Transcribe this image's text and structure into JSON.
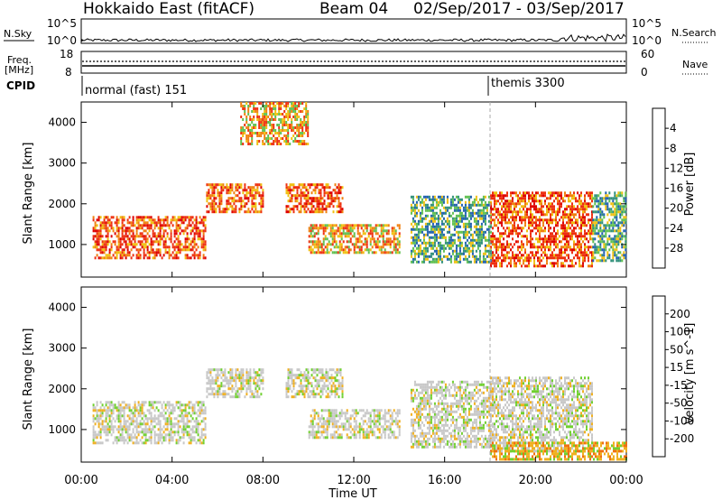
{
  "header": {
    "station": "Hokkaido East (fitACF)",
    "beam": "Beam 04",
    "dates": "02/Sep/2017 - 03/Sep/2017"
  },
  "noise_panel": {
    "left_label": "N.Sky",
    "right_label": "N.Search",
    "tick_top": "10^5",
    "tick_bottom": "10^0"
  },
  "freq_panel": {
    "left_label_1": "Freq.",
    "left_label_2": "[MHz]",
    "right_label": "Nave",
    "left_ticks": [
      "18",
      "8"
    ],
    "right_ticks": [
      "60",
      "0"
    ]
  },
  "cpid": {
    "label": "CPID",
    "modes": [
      {
        "name": "normal (fast) 151",
        "start_hour": 0
      },
      {
        "name": "themis 3300",
        "start_hour": 18
      }
    ]
  },
  "x_axis": {
    "label": "Time UT",
    "ticks": [
      "00:00",
      "04:00",
      "08:00",
      "12:00",
      "16:00",
      "20:00",
      "00:00"
    ]
  },
  "chart_data": [
    {
      "type": "heatmap",
      "name": "power",
      "ylabel": "Slant Range [km]",
      "yticks": [
        1000,
        2000,
        3000,
        4000
      ],
      "ylim": [
        200,
        4500
      ],
      "xlim_hours": [
        0,
        24
      ],
      "colorbar": {
        "label": "Power [dB]",
        "ticks": [
          "4",
          "8",
          "12",
          "16",
          "20",
          "24",
          "28"
        ],
        "colors": [
          "#1020ff",
          "#2060b0",
          "#30907a",
          "#60c050",
          "#f0c010",
          "#f08010",
          "#ee3010",
          "#dd0000"
        ]
      },
      "regions": [
        {
          "t0": 0.5,
          "t1": 5.5,
          "r0": 700,
          "r1": 1700,
          "level": "high"
        },
        {
          "t0": 5.5,
          "t1": 8,
          "r0": 1800,
          "r1": 2500,
          "level": "high"
        },
        {
          "t0": 7,
          "t1": 10,
          "r0": 3500,
          "r1": 4500,
          "level": "mid"
        },
        {
          "t0": 9,
          "t1": 11.5,
          "r0": 1800,
          "r1": 2500,
          "level": "high"
        },
        {
          "t0": 10,
          "t1": 14,
          "r0": 800,
          "r1": 1500,
          "level": "mid"
        },
        {
          "t0": 14.5,
          "t1": 18,
          "r0": 600,
          "r1": 2200,
          "level": "low"
        },
        {
          "t0": 18,
          "t1": 22.5,
          "r0": 500,
          "r1": 2300,
          "level": "high"
        },
        {
          "t0": 22.5,
          "t1": 24,
          "r0": 600,
          "r1": 2300,
          "level": "low"
        }
      ]
    },
    {
      "type": "heatmap",
      "name": "velocity",
      "ylabel": "Slant Range [km]",
      "yticks": [
        1000,
        2000,
        3000,
        4000
      ],
      "ylim": [
        200,
        4500
      ],
      "xlim_hours": [
        0,
        24
      ],
      "colorbar": {
        "label": "Velocity [m s^-1]",
        "ticks": [
          "200",
          "100",
          "50",
          "15",
          "-15",
          "-50",
          "-100",
          "-200"
        ],
        "colors": [
          "#1020c0",
          "#2070a0",
          "#30a060",
          "#70d030",
          "#c8c8c8",
          "#f0b020",
          "#f07010",
          "#e02010",
          "#dd0000"
        ]
      },
      "regions": [
        {
          "t0": 0.5,
          "t1": 5.5,
          "r0": 700,
          "r1": 1700,
          "level": "ground"
        },
        {
          "t0": 5.5,
          "t1": 8,
          "r0": 1800,
          "r1": 2500,
          "level": "ground"
        },
        {
          "t0": 9,
          "t1": 11.5,
          "r0": 1800,
          "r1": 2500,
          "level": "ground"
        },
        {
          "t0": 10,
          "t1": 14,
          "r0": 800,
          "r1": 1500,
          "level": "ground"
        },
        {
          "t0": 14.5,
          "t1": 18,
          "r0": 600,
          "r1": 2200,
          "level": "ground"
        },
        {
          "t0": 18,
          "t1": 22.5,
          "r0": 500,
          "r1": 2300,
          "level": "ground"
        },
        {
          "t0": 18,
          "t1": 24,
          "r0": 250,
          "r1": 700,
          "level": "neg"
        }
      ]
    }
  ]
}
